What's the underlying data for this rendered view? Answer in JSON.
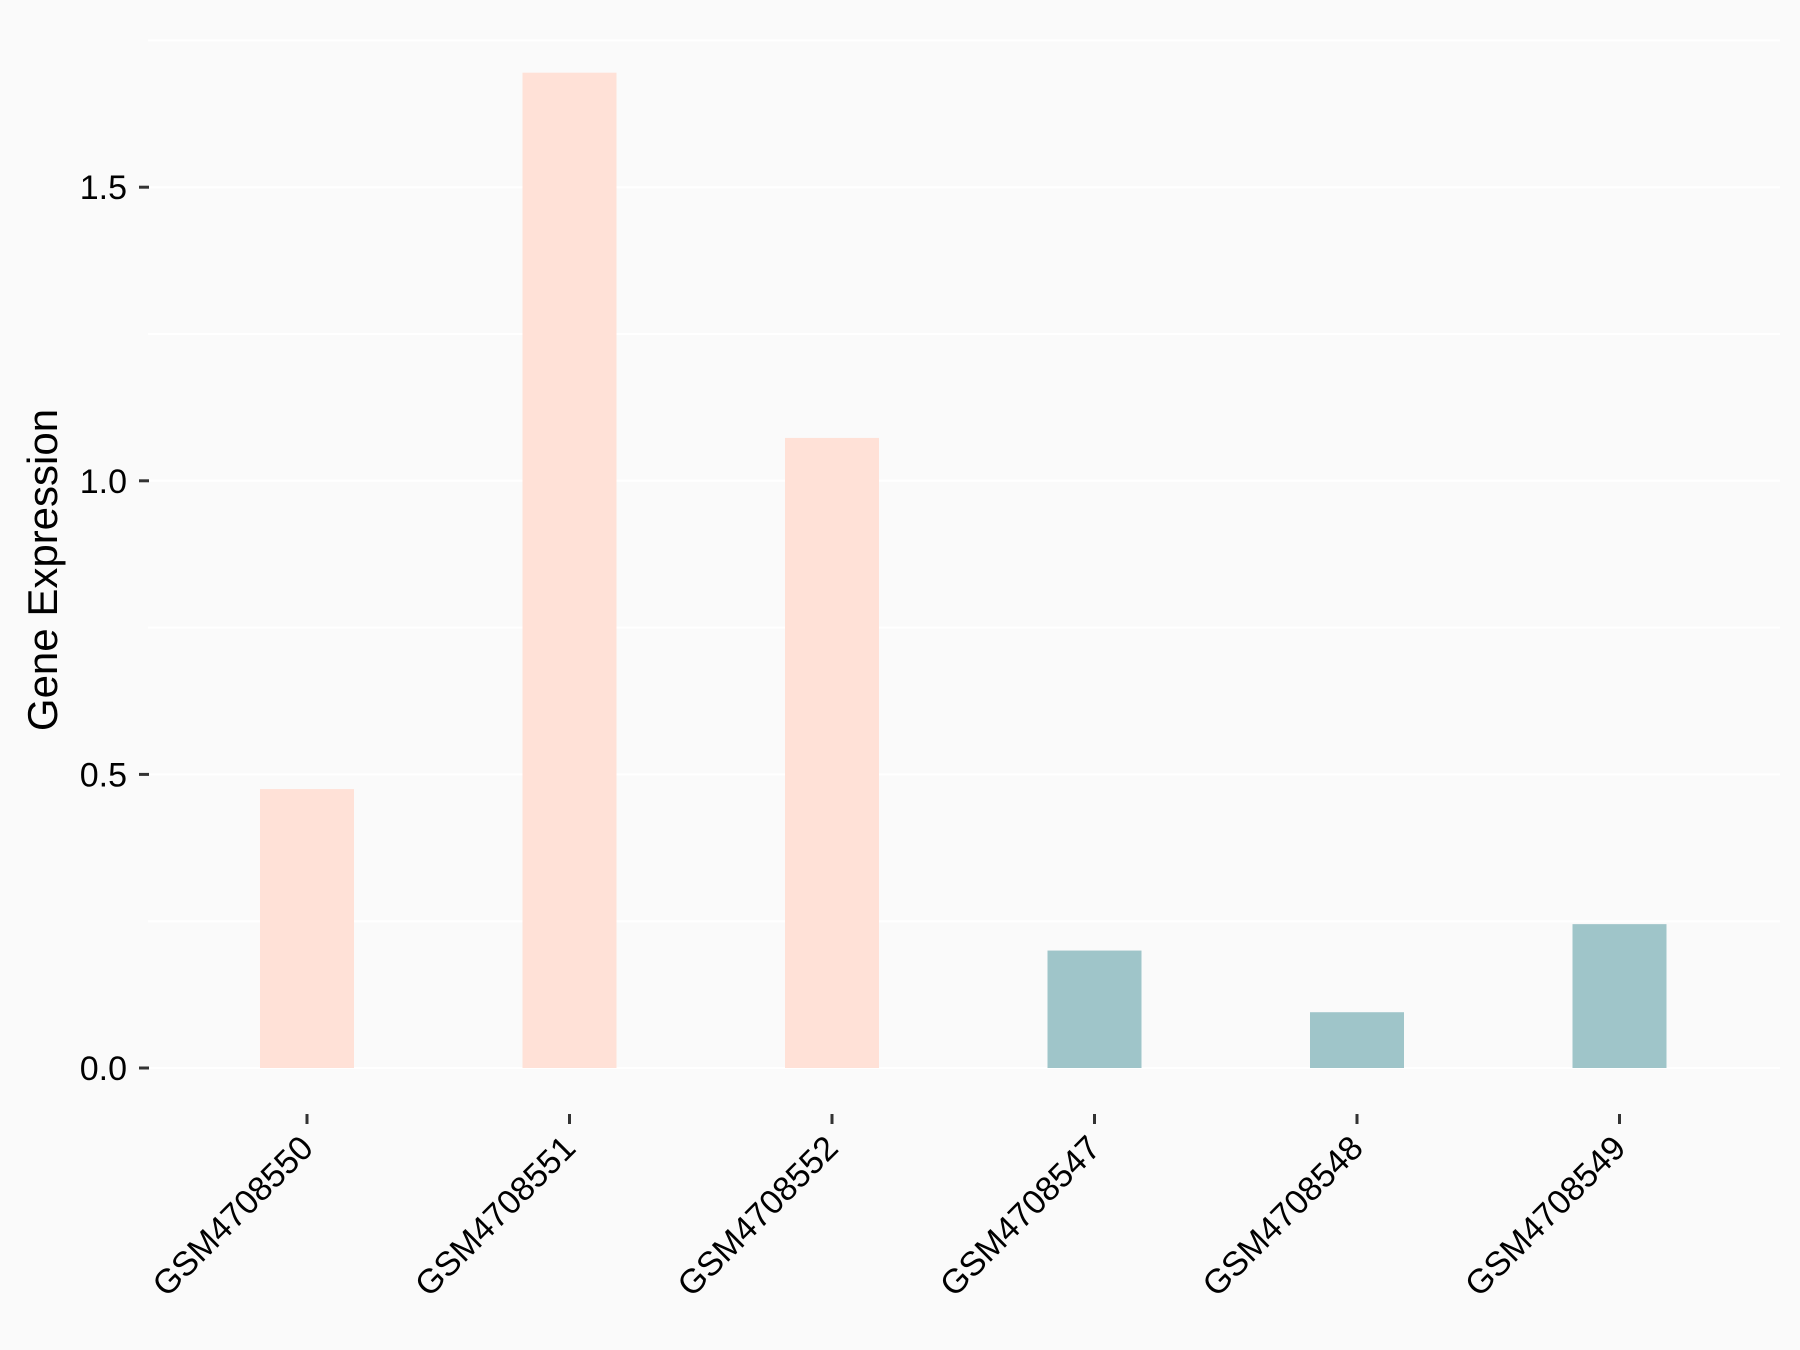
{
  "chart_data": {
    "type": "bar",
    "title": "",
    "xlabel": "",
    "ylabel": "Gene Expression",
    "categories": [
      "GSM4708550",
      "GSM4708551",
      "GSM4708552",
      "GSM4708547",
      "GSM4708548",
      "GSM4708549"
    ],
    "values": [
      0.475,
      1.695,
      1.073,
      0.2,
      0.095,
      0.245
    ],
    "groups": [
      "group1",
      "group1",
      "group1",
      "group2",
      "group2",
      "group2"
    ],
    "group_colors": {
      "group1": "#ffe1d7",
      "group2": "#9fc5c9"
    },
    "ylim": [
      -0.07,
      1.75
    ],
    "yticks": [
      0.0,
      0.5,
      1.0,
      1.5
    ],
    "ytick_labels": [
      "0.0",
      "0.5",
      "1.0",
      "1.5"
    ],
    "grid": true,
    "legend": "none",
    "background_color": "#fafafa",
    "grid_color": "#ffffff"
  }
}
